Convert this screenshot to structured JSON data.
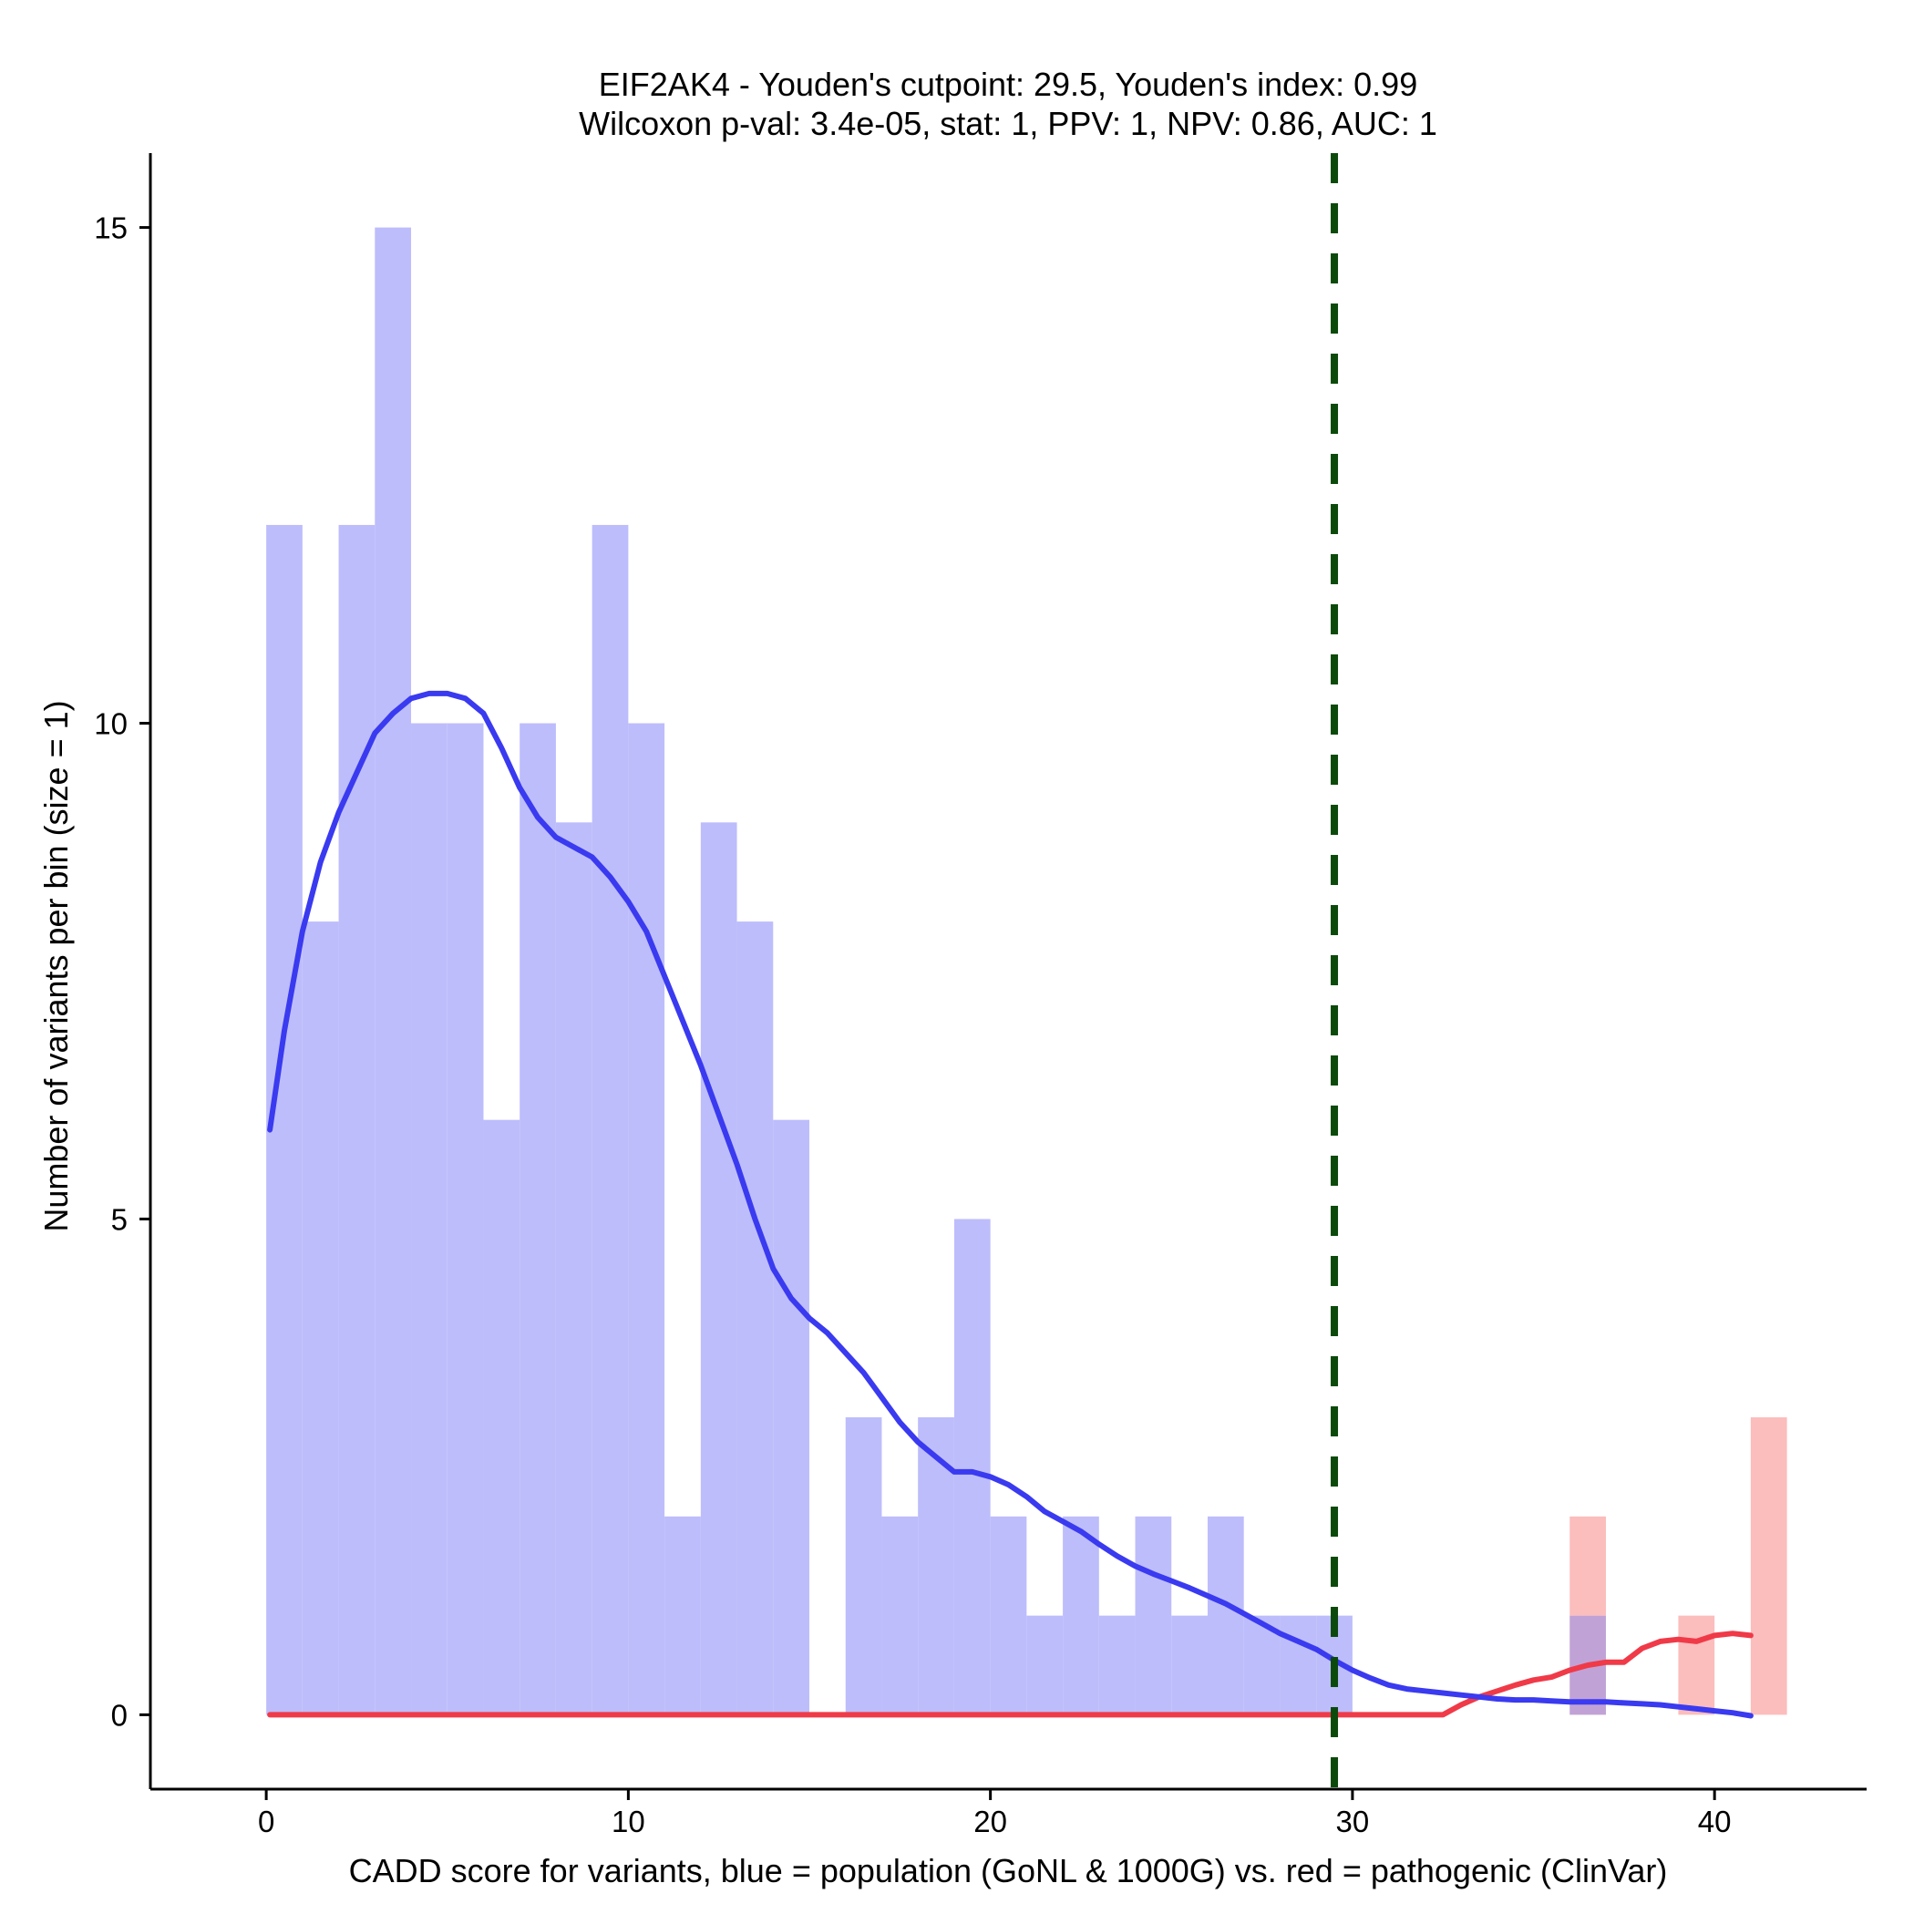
{
  "chart_data": {
    "type": "histogram",
    "title_line1": "EIF2AK4 - Youden's cutpoint: 29.5, Youden's index: 0.99",
    "title_line2": "Wilcoxon p-val: 3.4e-05, stat: 1, PPV: 1, NPV: 0.86, AUC: 1",
    "xlabel": "CADD score for variants, blue = population (GoNL & 1000G) vs. red = pathogenic (ClinVar)",
    "ylabel": "Number of variants per bin (size = 1)",
    "xlim": [
      -3.2,
      44.2
    ],
    "ylim": [
      -0.75,
      15.75
    ],
    "xticks": [
      0,
      10,
      20,
      30,
      40
    ],
    "yticks": [
      0,
      5,
      10,
      15
    ],
    "bin_size": 1,
    "cutpoint": 29.5,
    "colors": {
      "population_bar": "#bdbdfc",
      "pathogenic_bar": "#fcbdbd",
      "overlap_bar": "#c1a2d6",
      "population_density": "#3a3af0",
      "pathogenic_density": "#f03a48",
      "cutpoint_line": "#0b4a0b"
    },
    "series": [
      {
        "name": "population (GoNL & 1000G)",
        "bins": [
          {
            "start": 0,
            "count": 12
          },
          {
            "start": 1,
            "count": 8
          },
          {
            "start": 2,
            "count": 12
          },
          {
            "start": 3,
            "count": 15
          },
          {
            "start": 4,
            "count": 10
          },
          {
            "start": 5,
            "count": 10
          },
          {
            "start": 6,
            "count": 6
          },
          {
            "start": 7,
            "count": 10
          },
          {
            "start": 8,
            "count": 9
          },
          {
            "start": 9,
            "count": 12
          },
          {
            "start": 10,
            "count": 10
          },
          {
            "start": 11,
            "count": 2
          },
          {
            "start": 12,
            "count": 9
          },
          {
            "start": 13,
            "count": 8
          },
          {
            "start": 14,
            "count": 6
          },
          {
            "start": 16,
            "count": 3
          },
          {
            "start": 17,
            "count": 2
          },
          {
            "start": 18,
            "count": 3
          },
          {
            "start": 19,
            "count": 5
          },
          {
            "start": 20,
            "count": 2
          },
          {
            "start": 21,
            "count": 1
          },
          {
            "start": 22,
            "count": 2
          },
          {
            "start": 23,
            "count": 1
          },
          {
            "start": 24,
            "count": 2
          },
          {
            "start": 25,
            "count": 1
          },
          {
            "start": 26,
            "count": 2
          },
          {
            "start": 27,
            "count": 1
          },
          {
            "start": 28,
            "count": 1
          },
          {
            "start": 29,
            "count": 1
          },
          {
            "start": 36,
            "count": 1
          }
        ],
        "density_curve": [
          [
            0.1,
            5.9
          ],
          [
            0.5,
            6.9
          ],
          [
            1.0,
            7.9
          ],
          [
            1.5,
            8.6
          ],
          [
            2.0,
            9.1
          ],
          [
            2.5,
            9.5
          ],
          [
            3.0,
            9.9
          ],
          [
            3.5,
            10.1
          ],
          [
            4.0,
            10.25
          ],
          [
            4.5,
            10.3
          ],
          [
            5.0,
            10.3
          ],
          [
            5.5,
            10.25
          ],
          [
            6.0,
            10.1
          ],
          [
            6.5,
            9.75
          ],
          [
            7.0,
            9.35
          ],
          [
            7.5,
            9.05
          ],
          [
            8.0,
            8.85
          ],
          [
            8.5,
            8.75
          ],
          [
            9.0,
            8.65
          ],
          [
            9.5,
            8.45
          ],
          [
            10.0,
            8.2
          ],
          [
            10.5,
            7.9
          ],
          [
            11.0,
            7.45
          ],
          [
            11.5,
            7.0
          ],
          [
            12.0,
            6.55
          ],
          [
            12.5,
            6.05
          ],
          [
            13.0,
            5.55
          ],
          [
            13.5,
            5.0
          ],
          [
            14.0,
            4.5
          ],
          [
            14.5,
            4.2
          ],
          [
            15.0,
            4.0
          ],
          [
            15.5,
            3.85
          ],
          [
            16.0,
            3.65
          ],
          [
            16.5,
            3.45
          ],
          [
            17.0,
            3.2
          ],
          [
            17.5,
            2.95
          ],
          [
            18.0,
            2.75
          ],
          [
            18.5,
            2.6
          ],
          [
            19.0,
            2.45
          ],
          [
            19.5,
            2.45
          ],
          [
            20.0,
            2.4
          ],
          [
            20.5,
            2.32
          ],
          [
            21.0,
            2.2
          ],
          [
            21.5,
            2.05
          ],
          [
            22.0,
            1.95
          ],
          [
            22.5,
            1.85
          ],
          [
            23.0,
            1.72
          ],
          [
            23.5,
            1.6
          ],
          [
            24.0,
            1.5
          ],
          [
            24.5,
            1.42
          ],
          [
            25.0,
            1.35
          ],
          [
            25.5,
            1.28
          ],
          [
            26.0,
            1.2
          ],
          [
            26.5,
            1.12
          ],
          [
            27.0,
            1.02
          ],
          [
            27.5,
            0.92
          ],
          [
            28.0,
            0.82
          ],
          [
            28.5,
            0.74
          ],
          [
            29.0,
            0.66
          ],
          [
            29.5,
            0.55
          ],
          [
            30.0,
            0.45
          ],
          [
            30.5,
            0.37
          ],
          [
            31.0,
            0.3
          ],
          [
            31.5,
            0.26
          ],
          [
            32.0,
            0.24
          ],
          [
            32.5,
            0.22
          ],
          [
            33.0,
            0.2
          ],
          [
            33.5,
            0.18
          ],
          [
            34.0,
            0.16
          ],
          [
            34.5,
            0.15
          ],
          [
            35.0,
            0.15
          ],
          [
            35.5,
            0.14
          ],
          [
            36.0,
            0.13
          ],
          [
            36.5,
            0.13
          ],
          [
            37.0,
            0.13
          ],
          [
            37.5,
            0.12
          ],
          [
            38.0,
            0.11
          ],
          [
            38.5,
            0.1
          ],
          [
            39.0,
            0.08
          ],
          [
            39.5,
            0.06
          ],
          [
            40.0,
            0.04
          ],
          [
            40.5,
            0.02
          ],
          [
            41.0,
            -0.01
          ]
        ]
      },
      {
        "name": "pathogenic (ClinVar)",
        "bins": [
          {
            "start": 36,
            "count": 2
          },
          {
            "start": 39,
            "count": 1
          },
          {
            "start": 41,
            "count": 3
          }
        ],
        "density_curve": [
          [
            0.1,
            0.0
          ],
          [
            32.5,
            0.0
          ],
          [
            33.0,
            0.1
          ],
          [
            33.5,
            0.18
          ],
          [
            34.0,
            0.24
          ],
          [
            34.5,
            0.3
          ],
          [
            35.0,
            0.35
          ],
          [
            35.5,
            0.38
          ],
          [
            36.0,
            0.45
          ],
          [
            36.5,
            0.5
          ],
          [
            37.0,
            0.53
          ],
          [
            37.5,
            0.53
          ],
          [
            38.0,
            0.67
          ],
          [
            38.5,
            0.74
          ],
          [
            39.0,
            0.76
          ],
          [
            39.5,
            0.74
          ],
          [
            40.0,
            0.8
          ],
          [
            40.5,
            0.82
          ],
          [
            41.0,
            0.8
          ]
        ]
      }
    ]
  }
}
